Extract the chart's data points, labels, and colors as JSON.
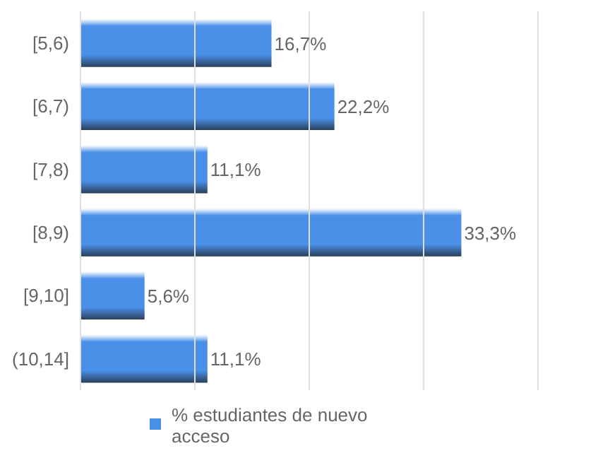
{
  "chart_data": {
    "type": "bar",
    "orientation": "horizontal",
    "categories": [
      "[5,6)",
      "[6,7)",
      "[7,8)",
      "[8,9)",
      "[9,10]",
      "(10,14]"
    ],
    "series": [
      {
        "name": "% estudiantes de nuevo acceso",
        "color": "#4a90e8",
        "values": [
          16.7,
          22.2,
          11.1,
          33.3,
          5.6,
          11.1
        ],
        "value_labels": [
          "16,7%",
          "22,2%",
          "11,1%",
          "33,3%",
          "5,6%",
          "11,1%"
        ]
      }
    ],
    "xlim": [
      0,
      40
    ],
    "xticks": [
      {
        "value": 0,
        "label": null
      },
      {
        "value": 10,
        "label": null
      },
      {
        "value": 20,
        "label": null
      },
      {
        "value": 30,
        "label": null
      },
      {
        "value": 40,
        "label": null
      }
    ],
    "grid": "x",
    "tick_labels": "y",
    "legend": "bottom"
  }
}
